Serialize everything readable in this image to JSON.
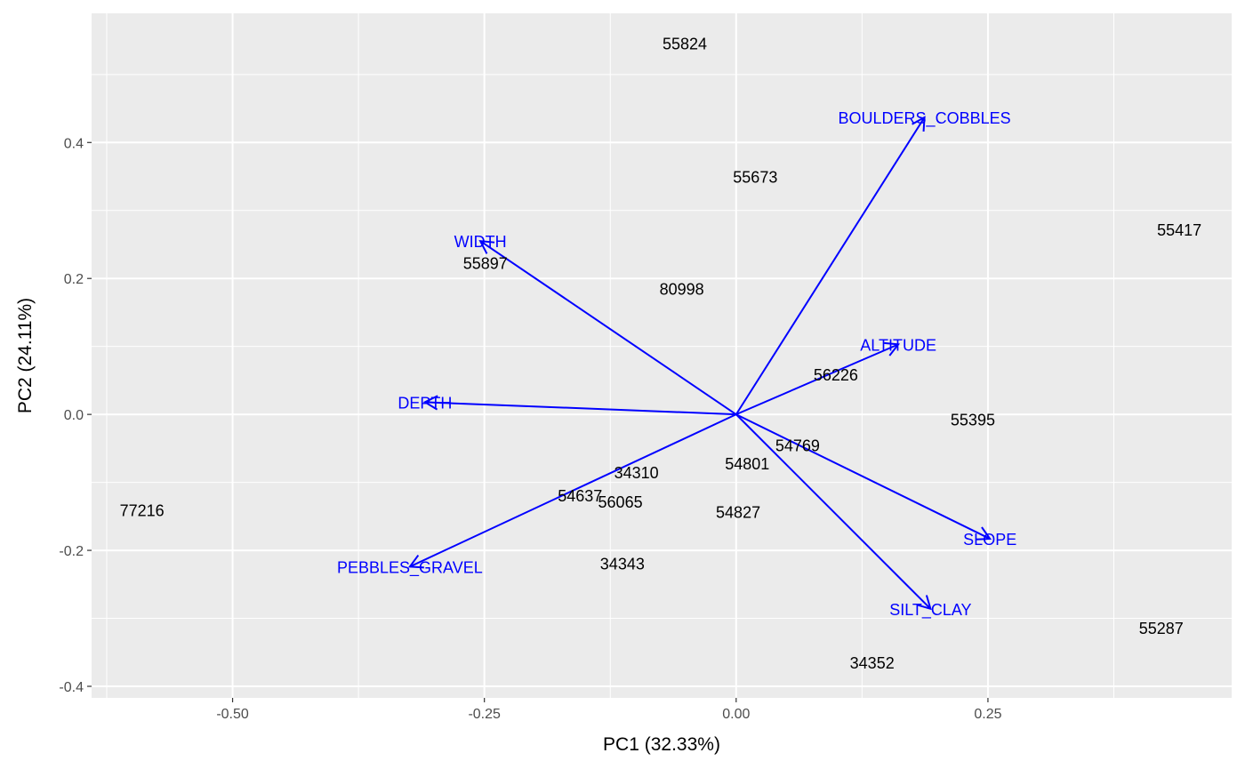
{
  "chart_data": {
    "type": "scatter",
    "subtype": "pca-biplot",
    "title": "",
    "xlabel": "PC1 (32.33%)",
    "ylabel": "PC2 (24.11%)",
    "xlim": [
      -0.64,
      0.492
    ],
    "ylim": [
      -0.417,
      0.59
    ],
    "x_ticks": [
      -0.5,
      -0.25,
      0.0,
      0.25
    ],
    "x_tick_labels": [
      "-0.50",
      "-0.25",
      "0.00",
      "0.25"
    ],
    "x_minor": [
      -0.625,
      -0.375,
      -0.125,
      0.125,
      0.375
    ],
    "y_ticks": [
      0.4,
      0.2,
      0.0,
      -0.2,
      -0.4
    ],
    "y_tick_labels": [
      "0.4",
      "0.2",
      "0.0",
      "-0.2",
      "-0.4"
    ],
    "y_minor": [
      0.5,
      0.3,
      0.1,
      -0.1,
      -0.3
    ],
    "grid": true,
    "colors": {
      "panel": "#EBEBEB",
      "grid": "#FFFFFF",
      "loading": "#0000FF",
      "points": "#000000",
      "ticks": "#4D4D4D"
    },
    "points": [
      {
        "label": "55824",
        "x": -0.051,
        "y": 0.545
      },
      {
        "label": "55673",
        "x": 0.019,
        "y": 0.349
      },
      {
        "label": "55417",
        "x": 0.44,
        "y": 0.271
      },
      {
        "label": "55897",
        "x": -0.249,
        "y": 0.222
      },
      {
        "label": "80998",
        "x": -0.054,
        "y": 0.184
      },
      {
        "label": "56226",
        "x": 0.099,
        "y": 0.058
      },
      {
        "label": "55395",
        "x": 0.235,
        "y": -0.008
      },
      {
        "label": "54769",
        "x": 0.061,
        "y": -0.046
      },
      {
        "label": "54801",
        "x": 0.011,
        "y": -0.073
      },
      {
        "label": "34310",
        "x": -0.099,
        "y": -0.086
      },
      {
        "label": "54637",
        "x": -0.155,
        "y": -0.12
      },
      {
        "label": "56065",
        "x": -0.115,
        "y": -0.129
      },
      {
        "label": "77216",
        "x": -0.59,
        "y": -0.142
      },
      {
        "label": "54827",
        "x": 0.002,
        "y": -0.144
      },
      {
        "label": "34343",
        "x": -0.113,
        "y": -0.22
      },
      {
        "label": "55287",
        "x": 0.422,
        "y": -0.315
      },
      {
        "label": "34352",
        "x": 0.135,
        "y": -0.366
      }
    ],
    "loadings": [
      {
        "label": "BOULDERS_COBBLES",
        "x": 0.187,
        "y": 0.437
      },
      {
        "label": "WIDTH",
        "x": -0.254,
        "y": 0.255
      },
      {
        "label": "ALTITUDE",
        "x": 0.161,
        "y": 0.103
      },
      {
        "label": "DEPTH",
        "x": -0.309,
        "y": 0.018
      },
      {
        "label": "SLOPE",
        "x": 0.252,
        "y": -0.183
      },
      {
        "label": "SILT_CLAY",
        "x": 0.193,
        "y": -0.286
      },
      {
        "label": "PEBBLES_GRAVEL",
        "x": -0.324,
        "y": -0.224
      }
    ]
  }
}
